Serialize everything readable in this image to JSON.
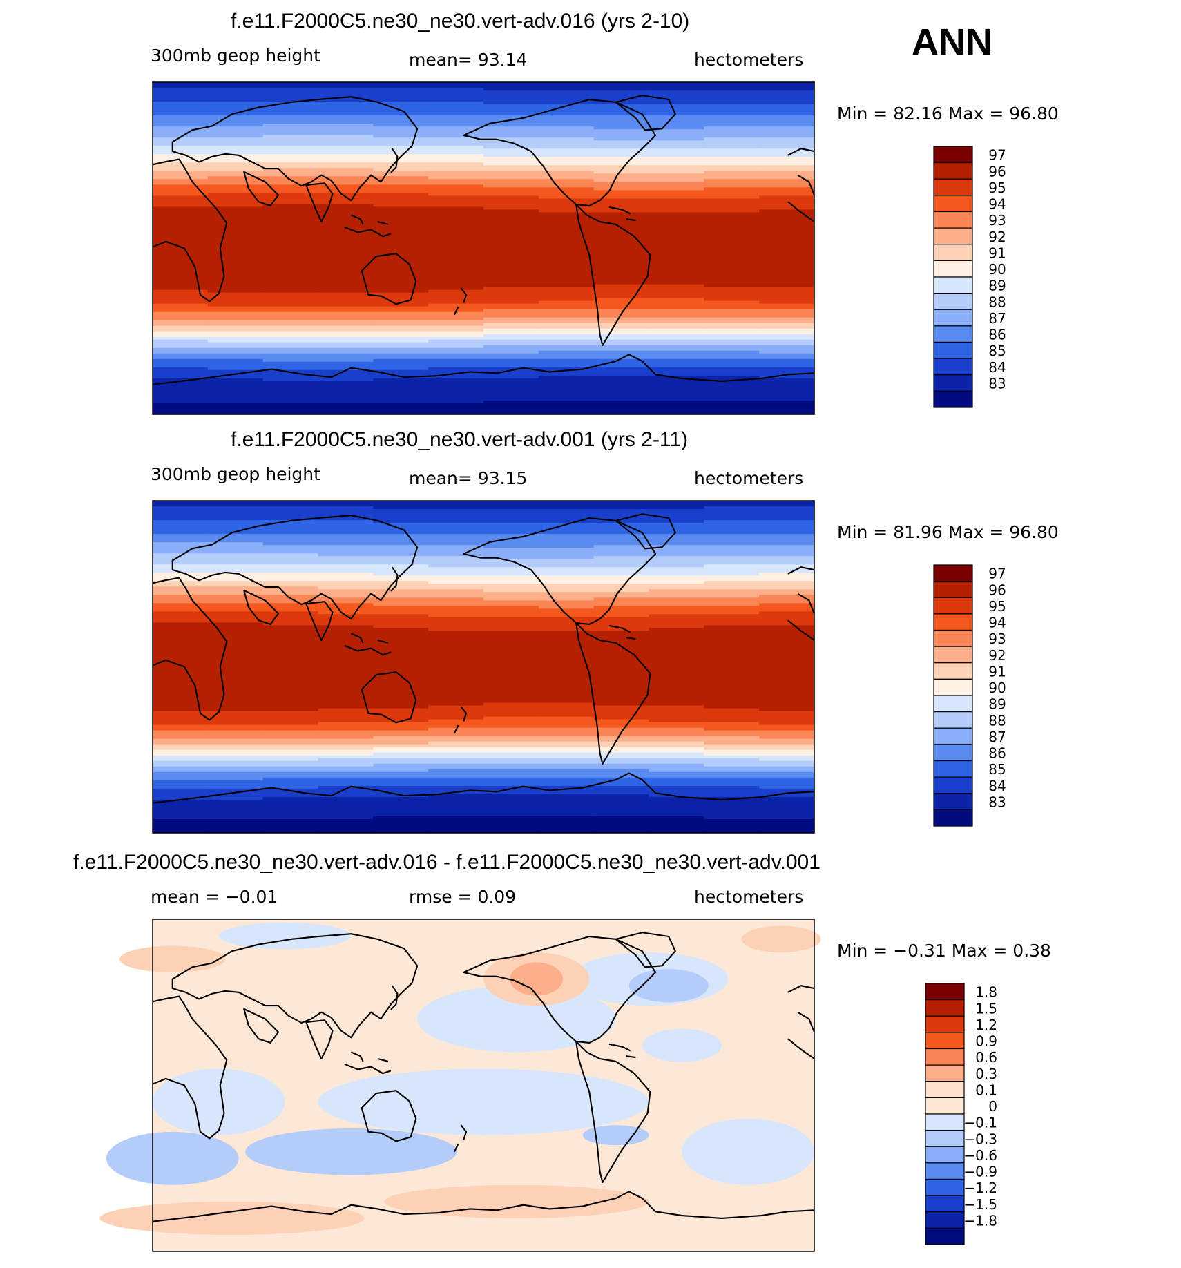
{
  "season": "ANN",
  "panels": [
    {
      "title": "f.e11.F2000C5.ne30_ne30.vert-adv.016 (yrs 2-10)",
      "left": "300mb  geop  height",
      "center": "mean=   93.14",
      "right": "hectometers",
      "minmax": "Min  =    82.16  Max  =    96.80"
    },
    {
      "title": "f.e11.F2000C5.ne30_ne30.vert-adv.001 (yrs 2-11)",
      "left": "300mb  geop  height",
      "center": "mean=   93.15",
      "right": "hectometers",
      "minmax": "Min  =    81.96  Max  =    96.80"
    },
    {
      "title": "f.e11.F2000C5.ne30_ne30.vert-adv.016 - f.e11.F2000C5.ne30_ne30.vert-adv.001",
      "left": "mean  =   −0.01",
      "center": "rmse  =     0.09",
      "right": "hectometers",
      "minmax": "Min  =   −0.31  Max  =     0.38"
    }
  ],
  "chart_data": [
    {
      "type": "heatmap",
      "title": "f.e11.F2000C5.ne30_ne30.vert-adv.016 (yrs 2-10)",
      "variable": "300mb geop height",
      "units": "hectometers",
      "mean": 93.14,
      "min": 82.16,
      "max": 96.8,
      "colorbar_levels": [
        "97",
        "96",
        "95",
        "94",
        "93",
        "92",
        "91",
        "90",
        "89",
        "88",
        "87",
        "86",
        "85",
        "84",
        "83"
      ],
      "colorbar_colors": [
        "#7a0000",
        "#b52000",
        "#dc3a0c",
        "#f5581e",
        "#fa8555",
        "#fcaf8a",
        "#fdd1b6",
        "#fff0e3",
        "#d8e6fc",
        "#b4ccfa",
        "#8aaef7",
        "#5a8bf0",
        "#2f64e4",
        "#1a40cb",
        "#0b23a8",
        "#000b80"
      ],
      "zonal_profile_lat_deg": [
        90,
        75,
        60,
        50,
        40,
        30,
        20,
        0,
        -20,
        -30,
        -40,
        -50,
        -60,
        -70,
        -90
      ],
      "zonal_profile_value": [
        83.5,
        85.5,
        88,
        90,
        92.5,
        94.8,
        96.2,
        96.6,
        96.3,
        95,
        92.5,
        89,
        86,
        84,
        82.5
      ]
    },
    {
      "type": "heatmap",
      "title": "f.e11.F2000C5.ne30_ne30.vert-adv.001 (yrs 2-11)",
      "variable": "300mb geop height",
      "units": "hectometers",
      "mean": 93.15,
      "min": 81.96,
      "max": 96.8,
      "colorbar_levels": [
        "97",
        "96",
        "95",
        "94",
        "93",
        "92",
        "91",
        "90",
        "89",
        "88",
        "87",
        "86",
        "85",
        "84",
        "83"
      ],
      "colorbar_colors": [
        "#7a0000",
        "#b52000",
        "#dc3a0c",
        "#f5581e",
        "#fa8555",
        "#fcaf8a",
        "#fdd1b6",
        "#fff0e3",
        "#d8e6fc",
        "#b4ccfa",
        "#8aaef7",
        "#5a8bf0",
        "#2f64e4",
        "#1a40cb",
        "#0b23a8",
        "#000b80"
      ],
      "zonal_profile_lat_deg": [
        90,
        75,
        60,
        50,
        40,
        30,
        20,
        0,
        -20,
        -30,
        -40,
        -50,
        -60,
        -70,
        -90
      ],
      "zonal_profile_value": [
        83.5,
        85.5,
        88,
        90,
        92.5,
        94.8,
        96.2,
        96.6,
        96.3,
        95,
        92.5,
        89,
        86,
        84,
        82.3
      ]
    },
    {
      "type": "heatmap",
      "title": "f.e11.F2000C5.ne30_ne30.vert-adv.016 - f.e11.F2000C5.ne30_ne30.vert-adv.001",
      "units": "hectometers",
      "mean": -0.01,
      "rmse": 0.09,
      "min": -0.31,
      "max": 0.38,
      "colorbar_levels": [
        "1.8",
        "1.5",
        "1.2",
        "0.9",
        "0.6",
        "0.3",
        "0.1",
        "0",
        "−0.1",
        "−0.3",
        "−0.6",
        "−0.9",
        "−1.2",
        "−1.5",
        "−1.8"
      ],
      "colorbar_colors": [
        "#7a0000",
        "#b52000",
        "#dc3a0c",
        "#f5581e",
        "#fa8555",
        "#fcaf8a",
        "#fde1cc",
        "#fde8d8",
        "#d8e6fc",
        "#b4ccfa",
        "#8aaef7",
        "#5a8bf0",
        "#2f64e4",
        "#1a40cb",
        "#0b23a8",
        "#000b80"
      ]
    }
  ]
}
